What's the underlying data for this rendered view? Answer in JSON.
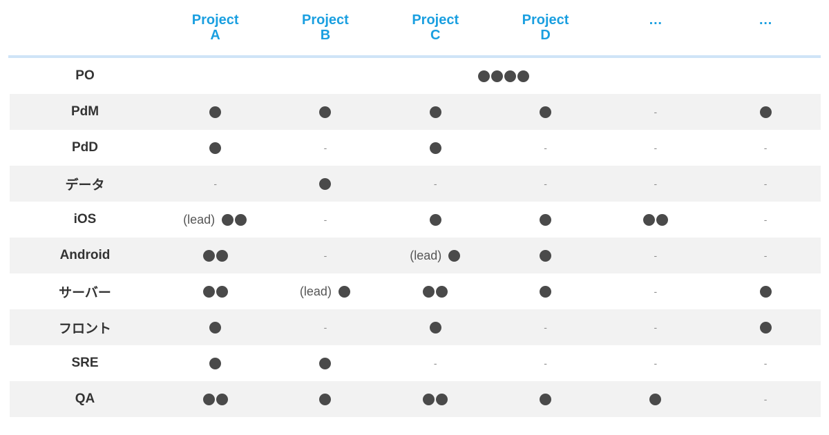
{
  "header": {
    "columns": [
      {
        "line1": "Project",
        "line2": "A"
      },
      {
        "line1": "Project",
        "line2": "B"
      },
      {
        "line1": "Project",
        "line2": "C"
      },
      {
        "line1": "Project",
        "line2": "D"
      },
      {
        "line1": "…",
        "line2": ""
      },
      {
        "line1": "…",
        "line2": ""
      }
    ]
  },
  "po_row": {
    "label": "PO",
    "dots": 4
  },
  "rows": [
    {
      "label": "PdM",
      "cells": [
        {
          "dots": 1
        },
        {
          "dots": 1
        },
        {
          "dots": 1
        },
        {
          "dots": 1
        },
        {
          "text": "-"
        },
        {
          "dots": 1
        }
      ]
    },
    {
      "label": "PdD",
      "cells": [
        {
          "dots": 1
        },
        {
          "text": "-"
        },
        {
          "dots": 1
        },
        {
          "text": "-"
        },
        {
          "text": "-"
        },
        {
          "text": "-"
        }
      ]
    },
    {
      "label": "データ",
      "cells": [
        {
          "text": "-"
        },
        {
          "dots": 1
        },
        {
          "text": "-"
        },
        {
          "text": "-"
        },
        {
          "text": "-"
        },
        {
          "text": "-"
        }
      ]
    },
    {
      "label": "iOS",
      "cells": [
        {
          "lead": "(lead)",
          "dots": 2
        },
        {
          "text": "-"
        },
        {
          "dots": 1
        },
        {
          "dots": 1
        },
        {
          "dots": 2
        },
        {
          "text": "-"
        }
      ]
    },
    {
      "label": "Android",
      "cells": [
        {
          "dots": 2
        },
        {
          "text": "-"
        },
        {
          "lead": "(lead)",
          "dots": 1
        },
        {
          "dots": 1
        },
        {
          "text": "-"
        },
        {
          "text": "-"
        }
      ]
    },
    {
      "label": "サーバー",
      "cells": [
        {
          "dots": 2
        },
        {
          "lead": "(lead)",
          "dots": 1
        },
        {
          "dots": 2
        },
        {
          "dots": 1
        },
        {
          "text": "-"
        },
        {
          "dots": 1
        }
      ]
    },
    {
      "label": "フロント",
      "cells": [
        {
          "dots": 1
        },
        {
          "text": "-"
        },
        {
          "dots": 1
        },
        {
          "text": "-"
        },
        {
          "text": "-"
        },
        {
          "dots": 1
        }
      ]
    },
    {
      "label": "SRE",
      "cells": [
        {
          "dots": 1
        },
        {
          "dots": 1
        },
        {
          "text": "-"
        },
        {
          "text": "-"
        },
        {
          "text": "-"
        },
        {
          "text": "-"
        }
      ]
    },
    {
      "label": "QA",
      "cells": [
        {
          "dots": 2
        },
        {
          "dots": 1
        },
        {
          "dots": 2
        },
        {
          "dots": 1
        },
        {
          "dots": 1
        },
        {
          "text": "-"
        }
      ]
    }
  ],
  "colors": {
    "header_text": "#1a9fe0",
    "header_rule": "#cfe4f7",
    "dot": "#4a4a4a",
    "shade": "#f2f2f2"
  },
  "icons": {
    "assignment_marker": "filled-circle"
  }
}
